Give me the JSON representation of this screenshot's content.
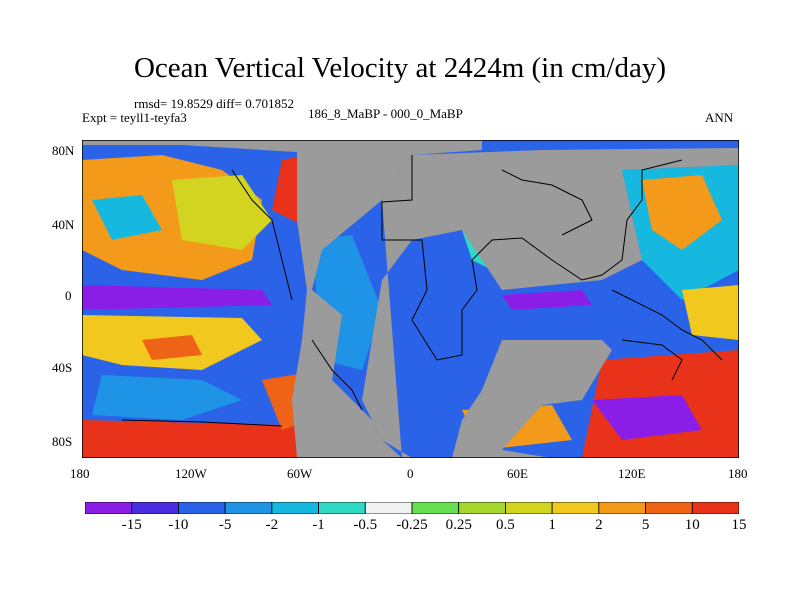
{
  "title": "Ocean Vertical Velocity at 2424m (in cm/day)",
  "stats": "rmsd= 19.8529 diff= 0.701852",
  "experiment": "Expt = teyll1-teyfa3",
  "period": "186_8_MaBP - 000_0_MaBP",
  "season": "ANN",
  "lat_ticks": [
    "80N",
    "40N",
    "0",
    "40S",
    "80S"
  ],
  "lon_ticks": [
    "180",
    "120W",
    "60W",
    "0",
    "60E",
    "120E",
    "180"
  ],
  "colorbar": {
    "labels": [
      "-15",
      "-10",
      "-5",
      "-2",
      "-1",
      "-0.5",
      "-0.25",
      "0.25",
      "0.5",
      "1",
      "2",
      "5",
      "10",
      "15"
    ],
    "colors": [
      "#8b1ee6",
      "#4a2ce0",
      "#2b63e8",
      "#1f93e6",
      "#16b8e0",
      "#2fd9c4",
      "#f2f2f2",
      "#66e052",
      "#a5d72c",
      "#d3d41f",
      "#f0c81e",
      "#f39a1a",
      "#ef6316",
      "#e8331a"
    ]
  },
  "map_colors": {
    "land": "#9b9b9b",
    "coast": "#000000"
  }
}
